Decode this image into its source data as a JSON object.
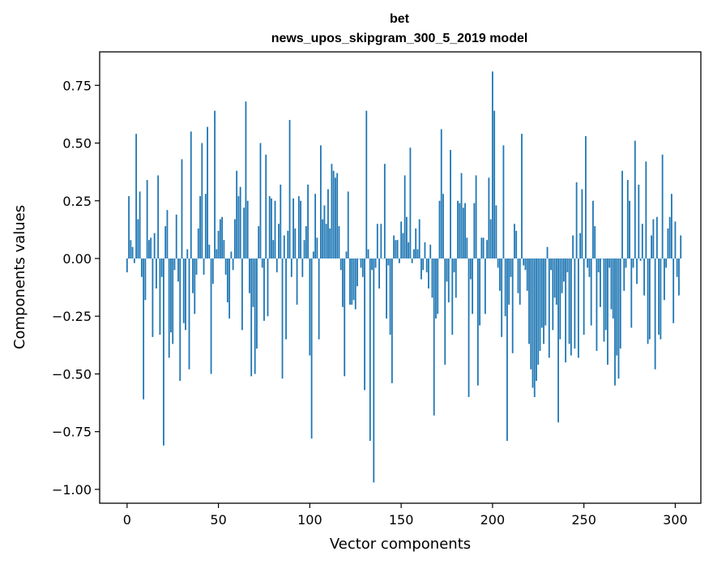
{
  "chart_data": {
    "type": "bar",
    "title_line1": "bet",
    "title_line2": "news_upos_skipgram_300_5_2019 model",
    "xlabel": "Vector components",
    "ylabel": "Components values",
    "xlim": [
      -15,
      314
    ],
    "ylim": [
      -1.06,
      0.895
    ],
    "xticks": [
      0,
      50,
      100,
      150,
      200,
      250,
      300
    ],
    "xtick_labels": [
      "0",
      "50",
      "100",
      "150",
      "200",
      "250",
      "300"
    ],
    "yticks": [
      -1.0,
      -0.75,
      -0.5,
      -0.25,
      0.0,
      0.25,
      0.5,
      0.75
    ],
    "ytick_labels": [
      "−1.00",
      "−0.75",
      "−0.50",
      "−0.25",
      "0.00",
      "0.25",
      "0.50",
      "0.75"
    ],
    "bar_color": "#1f77b4",
    "values": [
      -0.06,
      0.27,
      0.08,
      0.05,
      -0.02,
      0.54,
      0.17,
      0.29,
      -0.08,
      -0.61,
      -0.18,
      0.34,
      0.08,
      0.09,
      -0.34,
      0.11,
      -0.13,
      0.36,
      -0.33,
      -0.08,
      -0.81,
      0.14,
      0.21,
      -0.43,
      -0.32,
      -0.37,
      -0.05,
      0.19,
      -0.1,
      -0.53,
      0.43,
      -0.28,
      -0.31,
      0.04,
      -0.48,
      0.55,
      -0.15,
      -0.24,
      -0.07,
      0.13,
      0.27,
      0.5,
      -0.07,
      0.28,
      0.57,
      0.06,
      -0.5,
      -0.11,
      0.64,
      0.04,
      0.12,
      0.17,
      0.18,
      0.08,
      -0.07,
      -0.19,
      -0.26,
      0.03,
      -0.05,
      0.17,
      0.38,
      0.27,
      0.31,
      -0.31,
      0.22,
      0.68,
      0.25,
      -0.15,
      -0.51,
      -0.21,
      -0.5,
      -0.39,
      0.14,
      0.5,
      -0.04,
      -0.27,
      0.45,
      -0.25,
      0.27,
      0.26,
      0.08,
      0.25,
      -0.06,
      0.15,
      0.32,
      -0.52,
      0.1,
      -0.35,
      0.12,
      0.6,
      -0.08,
      0.26,
      0.13,
      -0.2,
      0.27,
      0.25,
      -0.08,
      0.08,
      0.14,
      0.32,
      -0.42,
      -0.78,
      0.03,
      0.28,
      0.09,
      -0.35,
      0.49,
      0.17,
      0.23,
      0.15,
      0.3,
      0.13,
      0.41,
      0.38,
      0.35,
      0.37,
      0.14,
      -0.05,
      -0.21,
      -0.51,
      0.03,
      0.29,
      -0.2,
      -0.2,
      -0.18,
      -0.22,
      -0.12,
      0.0,
      -0.04,
      -0.08,
      -0.57,
      0.64,
      0.04,
      -0.79,
      -0.05,
      -0.97,
      -0.04,
      0.15,
      -0.13,
      0.15,
      0.0,
      0.41,
      -0.26,
      -0.03,
      -0.33,
      -0.54,
      0.1,
      0.08,
      0.08,
      -0.02,
      0.16,
      0.11,
      0.36,
      0.18,
      0.07,
      0.48,
      -0.02,
      0.04,
      0.13,
      0.04,
      0.17,
      -0.09,
      -0.05,
      0.07,
      -0.06,
      -0.13,
      0.06,
      -0.17,
      -0.68,
      -0.26,
      -0.24,
      0.25,
      0.56,
      0.28,
      -0.46,
      -0.1,
      -0.19,
      0.47,
      -0.33,
      -0.06,
      -0.17,
      0.25,
      0.24,
      0.37,
      0.22,
      0.24,
      0.09,
      -0.6,
      -0.09,
      -0.24,
      0.24,
      0.36,
      -0.55,
      -0.29,
      0.09,
      0.09,
      -0.24,
      0.08,
      0.35,
      0.17,
      0.81,
      0.64,
      0.23,
      -0.04,
      -0.14,
      -0.34,
      0.49,
      -0.25,
      -0.79,
      -0.2,
      -0.08,
      -0.41,
      0.15,
      0.12,
      -0.15,
      -0.2,
      0.54,
      -0.03,
      -0.05,
      -0.14,
      -0.37,
      -0.48,
      -0.56,
      -0.6,
      -0.53,
      -0.46,
      -0.4,
      -0.3,
      -0.37,
      -0.29,
      0.05,
      -0.43,
      -0.05,
      -0.31,
      -0.17,
      -0.2,
      -0.71,
      -0.35,
      -0.15,
      -0.1,
      -0.45,
      -0.06,
      -0.37,
      -0.42,
      0.1,
      -0.39,
      0.33,
      -0.43,
      0.11,
      0.3,
      -0.33,
      0.53,
      -0.04,
      -0.08,
      -0.29,
      0.25,
      0.14,
      -0.4,
      -0.06,
      -0.21,
      0.0,
      -0.36,
      -0.31,
      -0.46,
      -0.04,
      -0.22,
      -0.26,
      -0.55,
      -0.42,
      -0.52,
      -0.39,
      0.38,
      -0.14,
      -0.04,
      0.34,
      0.25,
      -0.3,
      -0.04,
      0.51,
      -0.11,
      0.32,
      -0.01,
      0.15,
      -0.16,
      0.42,
      -0.37,
      -0.35,
      0.1,
      0.17,
      -0.48,
      0.18,
      -0.33,
      -0.35,
      0.45,
      -0.18,
      -0.04,
      0.13,
      0.18,
      0.28,
      -0.28,
      0.16,
      -0.08,
      -0.16,
      0.1
    ]
  }
}
